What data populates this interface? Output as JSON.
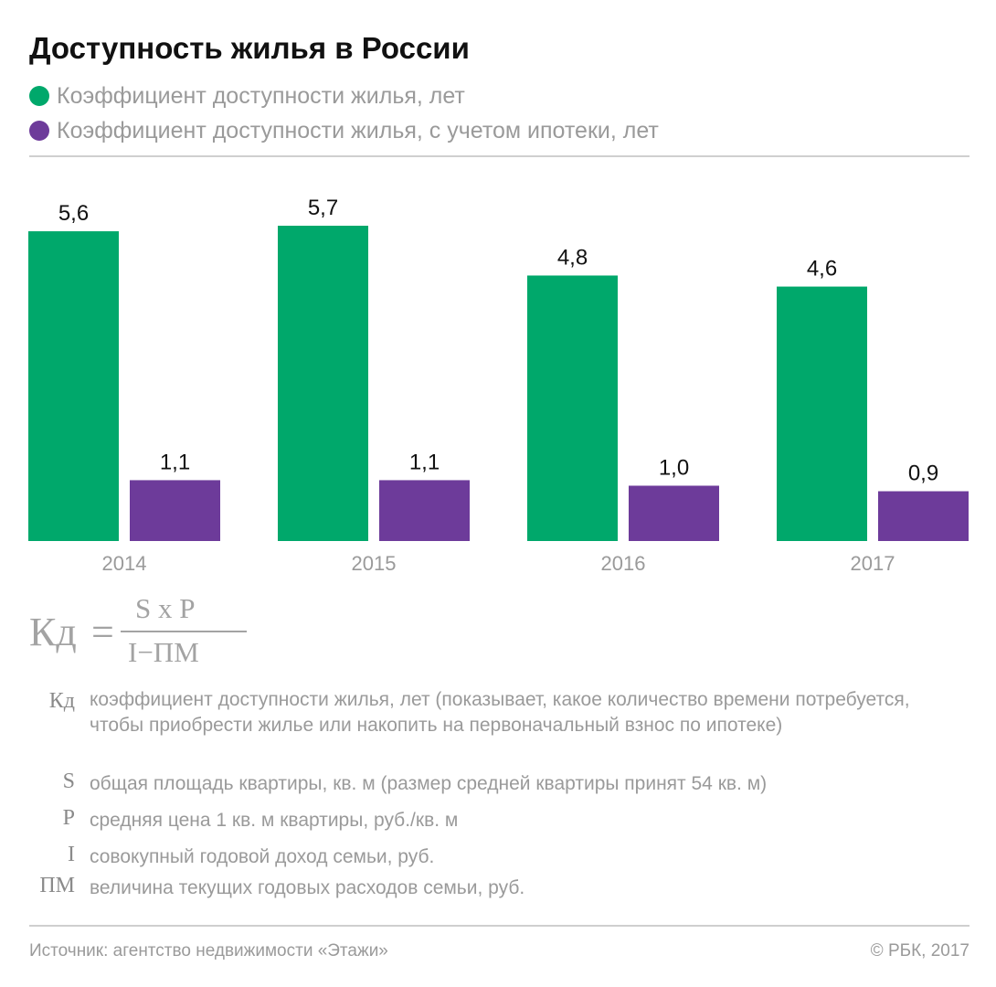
{
  "title": "Доступность жилья в России",
  "legend": [
    {
      "label": "Коэффициент доступности жилья, лет",
      "color": "#00a86b"
    },
    {
      "label": "Коэффициент доступности жилья, с учетом ипотеки, лет",
      "color": "#6d3b9a"
    }
  ],
  "chart_data": {
    "type": "bar",
    "categories": [
      "2014",
      "2015",
      "2016",
      "2017"
    ],
    "series": [
      {
        "name": "Коэффициент доступности жилья, лет",
        "values": [
          5.6,
          5.7,
          4.8,
          4.6
        ],
        "labels": [
          "5,6",
          "5,7",
          "4,8",
          "4,6"
        ],
        "color": "#00a86b"
      },
      {
        "name": "Коэффициент доступности жилья, с учетом ипотеки, лет",
        "values": [
          1.1,
          1.1,
          1.0,
          0.9
        ],
        "labels": [
          "1,1",
          "1,1",
          "1,0",
          "0,9"
        ],
        "color": "#6d3b9a"
      }
    ],
    "ylim": [
      0,
      5.7
    ],
    "grid": false,
    "legend_position": "top-left"
  },
  "formula": {
    "lhs": "Кд",
    "eq": "=",
    "numerator": "S x P",
    "denominator": "I−ПМ"
  },
  "definitions": [
    {
      "symbol": "Кд",
      "text": "коэффициент доступности жилья, лет (показывает, какое количество времени потребуется, чтобы приобрести жилье или накопить на первоначальный взнос по ипотеке)"
    },
    {
      "symbol": "S",
      "text": "общая площадь квартиры, кв. м (размер средней квартиры принят 54 кв. м)"
    },
    {
      "symbol": "P",
      "text": "средняя цена 1 кв. м квартиры, руб./кв. м"
    },
    {
      "symbol": "I",
      "text": "совокупный годовой доход семьи, руб."
    },
    {
      "symbol": "ПМ",
      "text": "величина текущих годовых расходов семьи, руб."
    }
  ],
  "footer": {
    "source": "Источник: агентство недвижимости «Этажи»",
    "copyright": "© РБК, 2017"
  }
}
